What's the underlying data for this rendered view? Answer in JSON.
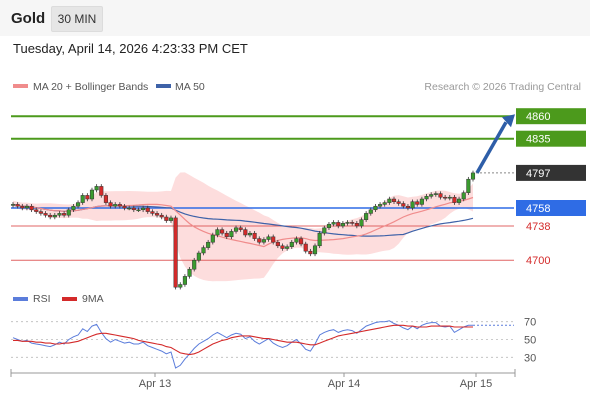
{
  "header": {
    "title": "Gold",
    "timeframe": "30 MIN",
    "timestamp": "Tuesday, April 14, 2026 4:23:33 PM CET"
  },
  "colors": {
    "bullish": "#3a9b2f",
    "bearish": "#d42a2a",
    "ma20": "#f08c8c",
    "ma50": "#3e62a8",
    "bands_fill": "#fdd9d9",
    "target_line": "#4c9a1c",
    "current_line": "#2f6ce5",
    "support_line": "#e06464",
    "last_price_tag": "#333333",
    "rsi": "#5b7ddb",
    "rsi_ma": "#d42a2a",
    "arrow": "#2e5ea8"
  },
  "chart_data": [
    {
      "type": "candlestick",
      "title": "",
      "legend": [
        {
          "name": "MA 20 + Bollinger Bands",
          "color": "#f08c8c"
        },
        {
          "name": "MA 50",
          "color": "#3e62a8"
        }
      ],
      "legend_position": "top-left",
      "source": "Research © 2026 Trading Central",
      "ylim": [
        4678,
        4878
      ],
      "x_ticks": [
        "Apr 13",
        "Apr 14",
        "Apr 15"
      ],
      "levels": [
        {
          "label": "4860",
          "value": 4860,
          "kind": "target"
        },
        {
          "label": "4835",
          "value": 4835,
          "kind": "target"
        },
        {
          "label": "4797",
          "value": 4797,
          "kind": "last"
        },
        {
          "label": "4758",
          "value": 4758,
          "kind": "pivot"
        },
        {
          "label": "4738",
          "value": 4738,
          "kind": "support"
        },
        {
          "label": "4700",
          "value": 4700,
          "kind": "support"
        }
      ],
      "arrow": {
        "from": 4797,
        "to": 4860
      },
      "ohlc_close": [
        4762,
        4760,
        4758,
        4760,
        4756,
        4754,
        4752,
        4750,
        4748,
        4750,
        4752,
        4750,
        4756,
        4760,
        4764,
        4772,
        4768,
        4778,
        4782,
        4772,
        4764,
        4760,
        4762,
        4760,
        4758,
        4758,
        4756,
        4756,
        4758,
        4754,
        4752,
        4750,
        4748,
        4744,
        4747,
        4670,
        4673,
        4682,
        4690,
        4700,
        4708,
        4714,
        4720,
        4728,
        4734,
        4730,
        4726,
        4732,
        4736,
        4734,
        4728,
        4730,
        4724,
        4720,
        4723,
        4726,
        4720,
        4716,
        4713,
        4715,
        4720,
        4724,
        4718,
        4710,
        4707,
        4716,
        4730,
        4736,
        4740,
        4742,
        4738,
        4741,
        4742,
        4741,
        4738,
        4745,
        4752,
        4756,
        4760,
        4762,
        4764,
        4768,
        4765,
        4763,
        4760,
        4758,
        4765,
        4762,
        4768,
        4771,
        4773,
        4774,
        4770,
        4769,
        4770,
        4764,
        4768,
        4775,
        4790,
        4797
      ]
    },
    {
      "type": "line",
      "title": "",
      "legend": [
        {
          "name": "RSI",
          "color": "#5b7ddb"
        },
        {
          "name": "9MA",
          "color": "#d42a2a"
        }
      ],
      "ylim": [
        18,
        82
      ],
      "y_ticks": [
        70,
        50,
        30
      ],
      "series": [
        {
          "name": "RSI",
          "values": [
            52,
            50,
            48,
            49,
            46,
            45,
            44,
            43,
            42,
            44,
            47,
            45,
            50,
            53,
            55,
            62,
            59,
            65,
            67,
            58,
            51,
            47,
            50,
            48,
            46,
            47,
            45,
            45,
            47,
            43,
            41,
            39,
            37,
            34,
            36,
            18,
            21,
            28,
            34,
            40,
            45,
            48,
            51,
            55,
            58,
            55,
            52,
            55,
            57,
            56,
            51,
            53,
            48,
            45,
            48,
            51,
            46,
            43,
            41,
            43,
            47,
            50,
            45,
            39,
            37,
            45,
            55,
            58,
            60,
            61,
            58,
            60,
            61,
            60,
            57,
            61,
            65,
            67,
            69,
            70,
            70,
            71,
            68,
            66,
            63,
            61,
            65,
            62,
            66,
            68,
            69,
            69,
            65,
            64,
            65,
            58,
            61,
            64,
            66,
            66
          ]
        },
        {
          "name": "9MA",
          "values": [
            49,
            49,
            48,
            48,
            48,
            47,
            47,
            46,
            46,
            45,
            45,
            46,
            46,
            47,
            48,
            50,
            52,
            54,
            56,
            57,
            57,
            56,
            55,
            54,
            53,
            52,
            51,
            49,
            48,
            47,
            46,
            45,
            44,
            42,
            41,
            38,
            35,
            34,
            33,
            34,
            36,
            39,
            42,
            45,
            47,
            49,
            50,
            52,
            53,
            54,
            54,
            54,
            53,
            52,
            51,
            51,
            50,
            49,
            48,
            47,
            47,
            47,
            46,
            45,
            44,
            44,
            46,
            48,
            50,
            52,
            54,
            55,
            56,
            57,
            58,
            59,
            60,
            61,
            62,
            63,
            64,
            65,
            66,
            66,
            66,
            65,
            65,
            64,
            64,
            64,
            65,
            65,
            65,
            65,
            65,
            64,
            64,
            64,
            64,
            64
          ]
        }
      ]
    }
  ]
}
